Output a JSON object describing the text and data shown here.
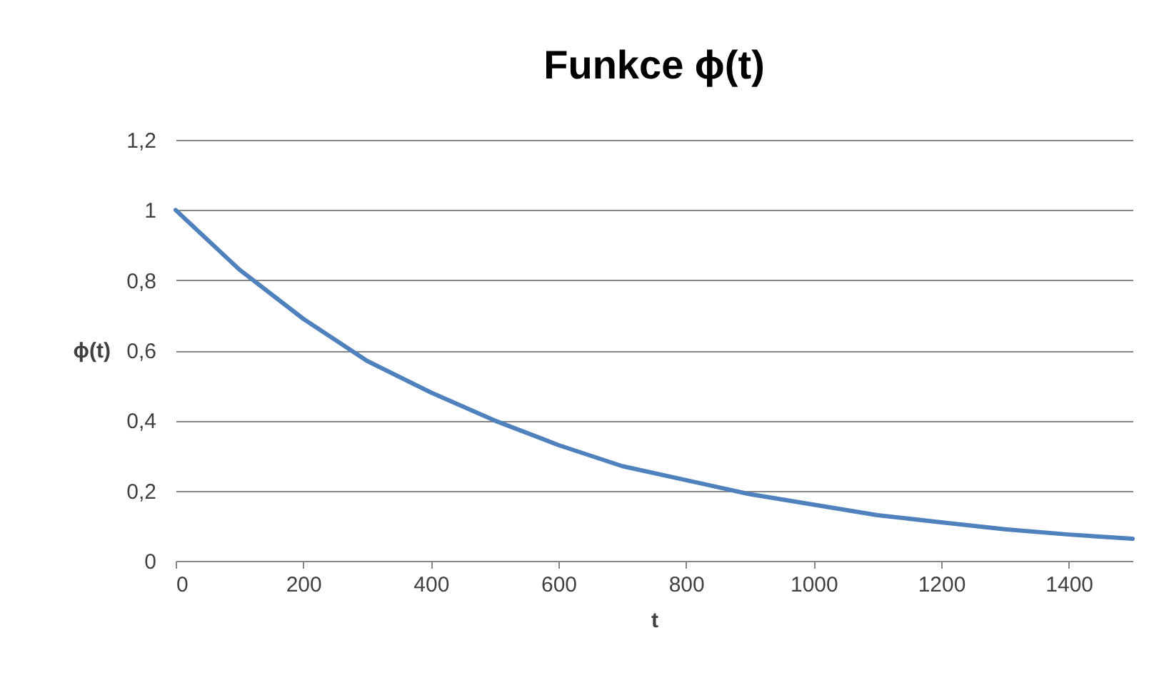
{
  "chart_data": {
    "type": "line",
    "title": "Funkce ϕ(t)",
    "xlabel": "t",
    "ylabel": "ϕ(t)",
    "x": [
      0,
      100,
      200,
      300,
      400,
      500,
      600,
      700,
      800,
      900,
      1000,
      1100,
      1200,
      1300,
      1400,
      1500
    ],
    "series": [
      {
        "color": "#4f81bd",
        "values": [
          1,
          0.83,
          0.69,
          0.57,
          0.48,
          0.4,
          0.33,
          0.27,
          0.23,
          0.19,
          0.16,
          0.13,
          0.11,
          0.09,
          0.075,
          0.063
        ]
      }
    ],
    "xlim": [
      0,
      1500
    ],
    "xticks": [
      0,
      200,
      400,
      600,
      800,
      1000,
      1200,
      1400
    ],
    "ylim": [
      0,
      1.2
    ],
    "yticks": [
      0,
      {
        "value": 0.2,
        "label": "0,2"
      },
      {
        "value": 0.4,
        "label": "0,4"
      },
      {
        "value": 0.6,
        "label": "0,6"
      },
      {
        "value": 0.8,
        "label": "0,8"
      },
      1,
      {
        "value": 1.2,
        "label": "1,2"
      }
    ],
    "grid": "y",
    "legend": false,
    "marker": "none",
    "line_style": "solid"
  }
}
